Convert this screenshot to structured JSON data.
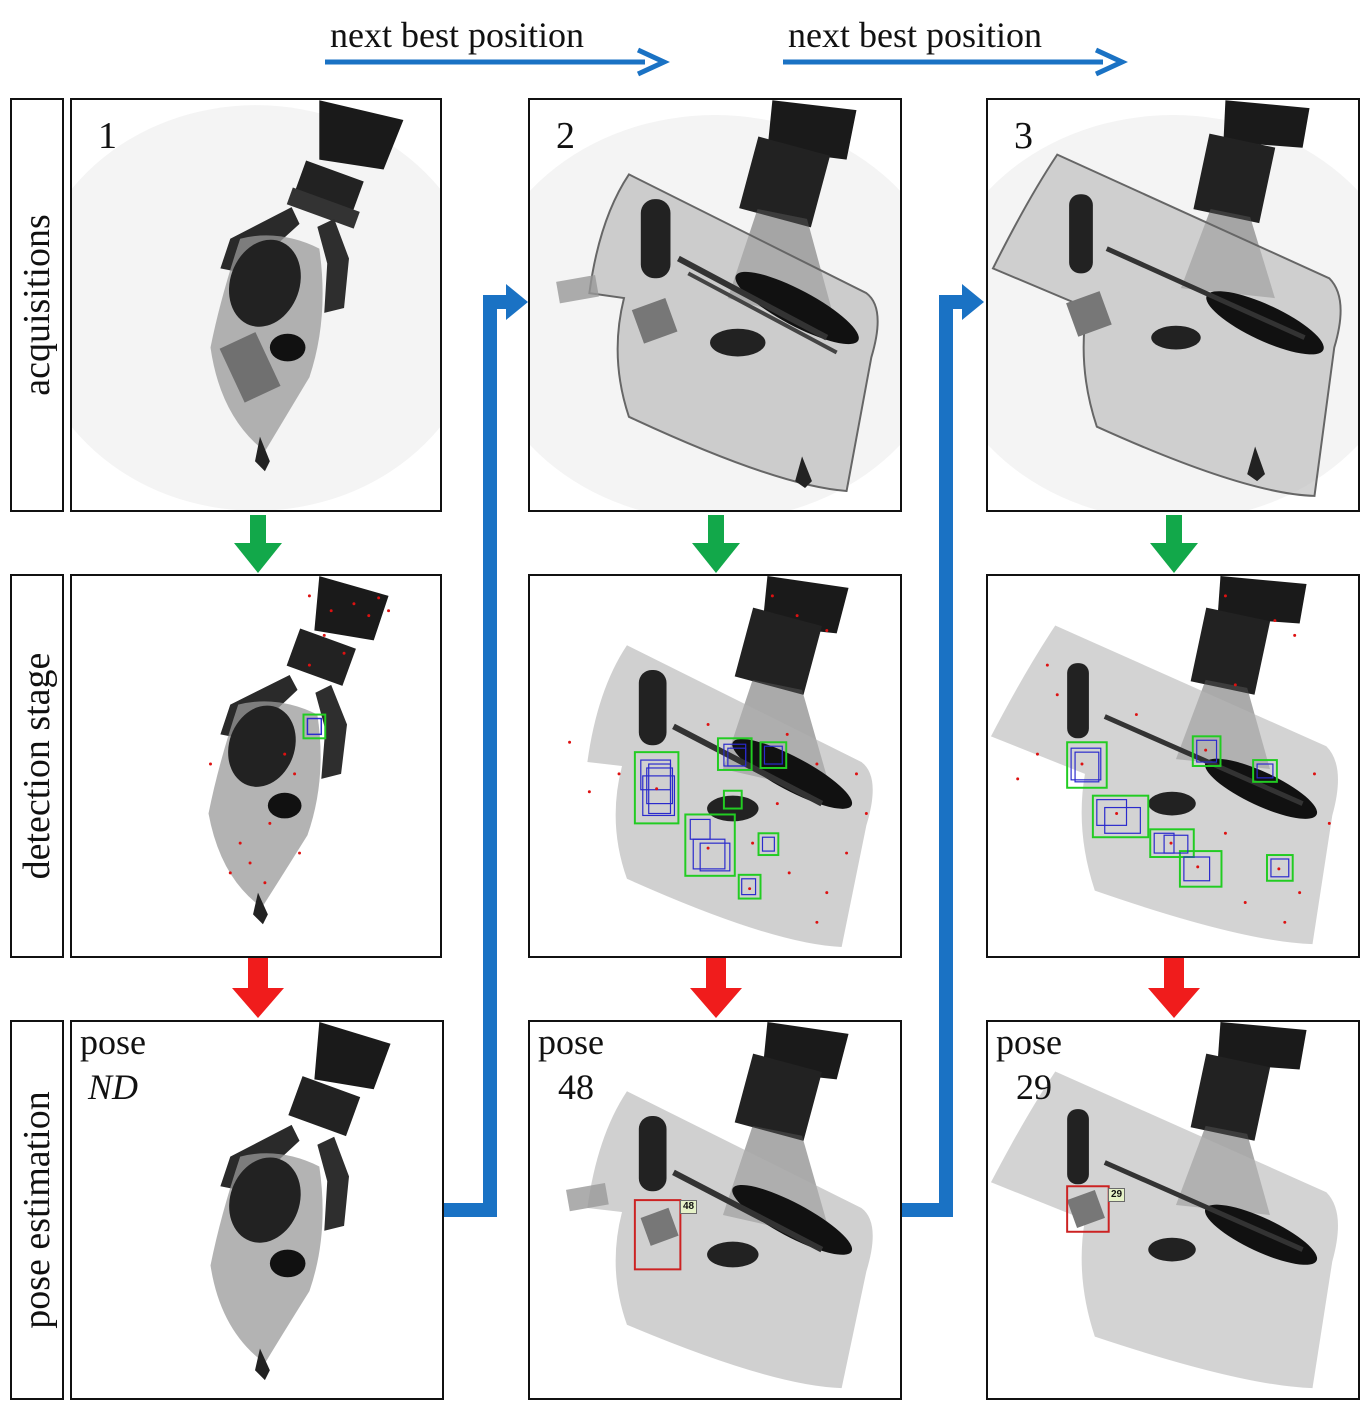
{
  "header": {
    "arrow_label_1": "next best position",
    "arrow_label_2": "next best position"
  },
  "rows": {
    "acquisitions": "acquisitions",
    "detection": "detection stage",
    "pose": "pose estimation"
  },
  "columns": [
    {
      "number": "1",
      "pose_label": "pose",
      "pose_value": "ND"
    },
    {
      "number": "2",
      "pose_label": "pose",
      "pose_value": "48",
      "tag": "48"
    },
    {
      "number": "3",
      "pose_label": "pose",
      "pose_value": "29",
      "tag": "29"
    }
  ],
  "colors": {
    "next_best_arrow": "#1a72c4",
    "detection_arrow": "#12a84a",
    "pose_arrow": "#f01c1c",
    "detection_box": "#22cc22",
    "pose_box": "#cc2222",
    "candidate_box": "#2a2acc",
    "keypoint": "#dd1111"
  }
}
